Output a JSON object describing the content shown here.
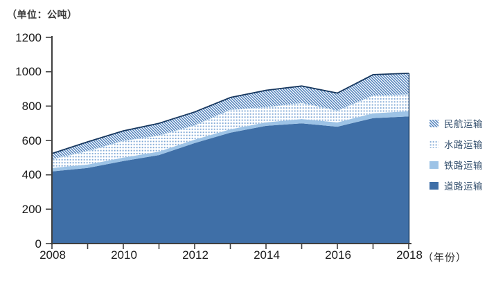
{
  "chart": {
    "unit_label": "（单位：公吨）",
    "x_axis_unit": "（年份）"
  },
  "legend": {
    "position": "right",
    "items": [
      {
        "id": "civil-aviation-transport",
        "label": "民航运输",
        "swatch": "hatch"
      },
      {
        "id": "water-transport",
        "label": "水路运输",
        "swatch": "dots"
      },
      {
        "id": "rail-transport",
        "label": "铁路运输",
        "swatch": "solid-light"
      },
      {
        "id": "road-transport",
        "label": "道路运输",
        "swatch": "solid-dark"
      }
    ]
  },
  "chart_data": {
    "type": "area",
    "stacked": true,
    "title": "（单位：公吨）",
    "xlabel": "（年份）",
    "ylabel": "",
    "grid": false,
    "x": [
      2008,
      2009,
      2010,
      2011,
      2012,
      2013,
      2014,
      2015,
      2016,
      2017,
      2018
    ],
    "x_labels_shown": [
      2008,
      2010,
      2012,
      2014,
      2016,
      2018
    ],
    "ylim": [
      0,
      1200
    ],
    "y_ticks": [
      0,
      200,
      400,
      600,
      800,
      1000,
      1200
    ],
    "series": [
      {
        "id": "road-transport",
        "name": "道路运输",
        "fill_type": "solid",
        "color": "#3F6FA7",
        "values": [
          420,
          440,
          480,
          515,
          585,
          645,
          685,
          700,
          680,
          730,
          740
        ]
      },
      {
        "id": "rail-transport",
        "name": "铁路运输",
        "fill_type": "solid",
        "color": "#9DC3E6",
        "values": [
          20,
          20,
          20,
          20,
          20,
          20,
          20,
          25,
          25,
          28,
          30
        ]
      },
      {
        "id": "water-transport",
        "name": "水路运输",
        "fill_type": "dots",
        "color": "#7FA8D6",
        "edge_top": "#BDD7EE",
        "values": [
          52,
          80,
          100,
          95,
          85,
          115,
          90,
          95,
          70,
          105,
          100
        ]
      },
      {
        "id": "civil-aviation-transport",
        "name": "民航运输",
        "fill_type": "hatch",
        "color": "#4E80BC",
        "edge_top": "#17375E",
        "values": [
          32,
          52,
          56,
          70,
          76,
          70,
          97,
          97,
          101,
          120,
          121
        ]
      }
    ],
    "totals": [
      524,
      592,
      656,
      700,
      766,
      850,
      892,
      917,
      876,
      983,
      991
    ],
    "colors": {
      "axis": "#3F3F3F",
      "tick_text": "#1A1A1A",
      "legend_text": "#35506E",
      "stack_outline": "#17375E",
      "hatch_line": "#4E80BC",
      "dot": "#7FA8D6",
      "band_edge_light": "#BDD7EE",
      "background": "#FFFFFF"
    }
  }
}
